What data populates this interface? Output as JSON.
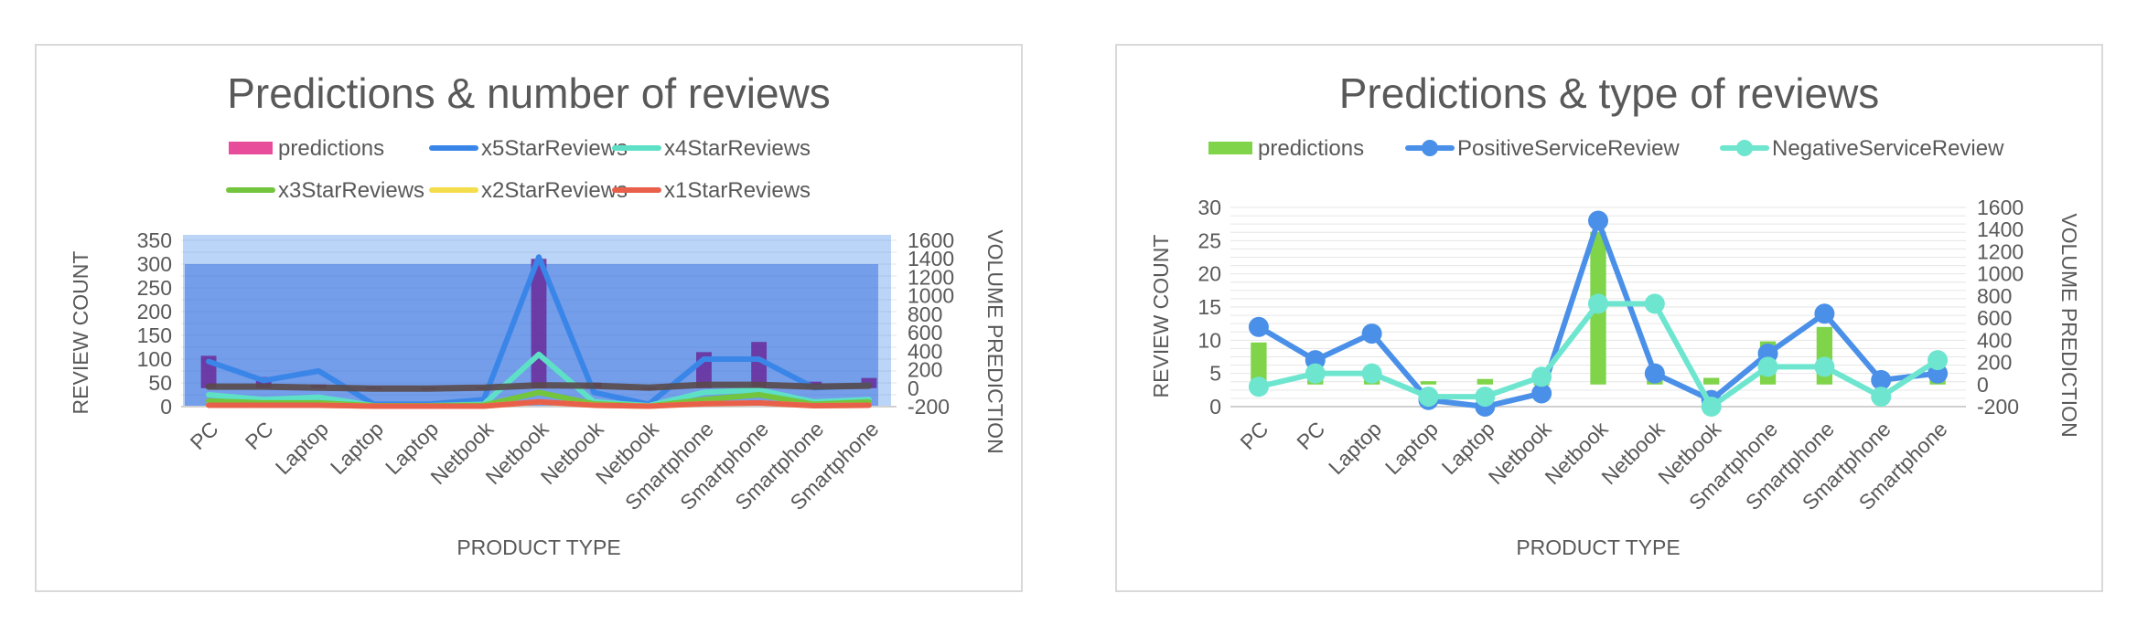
{
  "chart_data": [
    {
      "type": "line",
      "title": "Predictions & number of reviews",
      "xlabel": "PRODUCT TYPE",
      "ylabel": "REVIEW COUNT",
      "y2label": "VOLUME PREDICTION",
      "ylim": [
        0,
        350
      ],
      "y2lim": [
        -200,
        1600
      ],
      "yticks": [
        0,
        50,
        100,
        150,
        200,
        250,
        300,
        350
      ],
      "y2ticks": [
        -200,
        0,
        200,
        400,
        600,
        800,
        1000,
        1200,
        1400,
        1600
      ],
      "categories": [
        "PC",
        "PC",
        "Laptop",
        "Laptop",
        "Laptop",
        "Netbook",
        "Netbook",
        "Netbook",
        "Netbook",
        "Smartphone",
        "Smartphone",
        "Smartphone",
        "Smartphone"
      ],
      "legend_position": "top",
      "grid": true,
      "series": [
        {
          "name": "predictions",
          "kind": "bar",
          "axis": "secondary",
          "color": "#e84d9b",
          "values": [
            350,
            120,
            40,
            10,
            5,
            10,
            1400,
            60,
            5,
            390,
            500,
            70,
            110
          ]
        },
        {
          "name": "x5StarReviews",
          "kind": "line",
          "axis": "primary",
          "color": "#3a86e8",
          "values": [
            95,
            55,
            75,
            5,
            5,
            15,
            315,
            30,
            5,
            100,
            100,
            40,
            45
          ]
        },
        {
          "name": "x4StarReviews",
          "kind": "line",
          "axis": "primary",
          "color": "#5ee0c7",
          "values": [
            25,
            15,
            20,
            2,
            2,
            5,
            110,
            10,
            2,
            30,
            35,
            10,
            15
          ]
        },
        {
          "name": "x3StarReviews",
          "kind": "line",
          "axis": "primary",
          "color": "#72c53d",
          "values": [
            12,
            8,
            8,
            2,
            2,
            3,
            30,
            6,
            1,
            15,
            25,
            5,
            10
          ]
        },
        {
          "name": "x2StarReviews",
          "kind": "line",
          "axis": "primary",
          "color": "#f4dd4a",
          "values": [
            3,
            3,
            3,
            1,
            1,
            1,
            10,
            3,
            1,
            6,
            8,
            2,
            3
          ]
        },
        {
          "name": "x1StarReviews",
          "kind": "line",
          "axis": "primary",
          "color": "#e8604a",
          "values": [
            3,
            3,
            3,
            1,
            1,
            1,
            10,
            3,
            1,
            6,
            8,
            2,
            3
          ]
        }
      ]
    },
    {
      "type": "line",
      "title": "Predictions & type of reviews",
      "xlabel": "PRODUCT TYPE",
      "ylabel": "REVIEW COUNT",
      "y2label": "VOLUME PREDICTION",
      "ylim": [
        0,
        30
      ],
      "y2lim": [
        -200,
        1600
      ],
      "yticks": [
        0,
        5,
        10,
        15,
        20,
        25,
        30
      ],
      "y2ticks": [
        -200,
        0,
        200,
        400,
        600,
        800,
        1000,
        1200,
        1400,
        1600
      ],
      "categories": [
        "PC",
        "PC",
        "Laptop",
        "Laptop",
        "Laptop",
        "Netbook",
        "Netbook",
        "Netbook",
        "Netbook",
        "Smartphone",
        "Smartphone",
        "Smartphone",
        "Smartphone"
      ],
      "legend_position": "top",
      "grid": true,
      "series": [
        {
          "name": "predictions",
          "kind": "bar",
          "axis": "secondary",
          "color": "#7fd44a",
          "values": [
            380,
            50,
            50,
            30,
            50,
            10,
            1380,
            60,
            60,
            390,
            520,
            70,
            60
          ]
        },
        {
          "name": "PositiveServiceReview",
          "kind": "line-marker",
          "axis": "primary",
          "color": "#4a90e8",
          "values": [
            12,
            7,
            11,
            1,
            0,
            2,
            28,
            5,
            1,
            8,
            14,
            4,
            5
          ]
        },
        {
          "name": "NegativeServiceReview",
          "kind": "line-marker",
          "axis": "primary",
          "color": "#6ee6cf",
          "values": [
            3,
            5,
            5,
            1.5,
            1.5,
            4.5,
            15.5,
            15.5,
            0,
            6,
            6,
            1.5,
            7
          ]
        }
      ]
    }
  ]
}
